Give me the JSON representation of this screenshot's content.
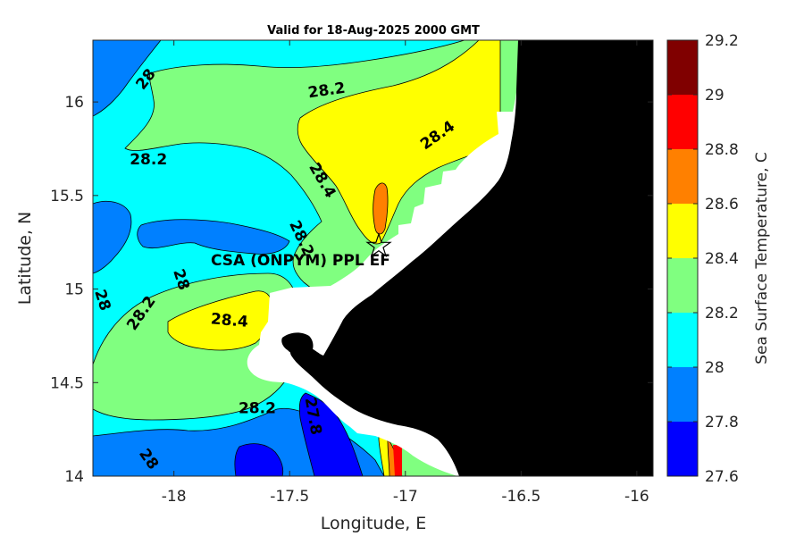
{
  "chart_data": {
    "type": "contour_map",
    "title": "Valid for 18-Aug-2025 2000 GMT",
    "xlabel": "Longitude, E",
    "ylabel": "Latitude, N",
    "xlim": [
      -18.35,
      -15.93
    ],
    "ylim": [
      14.0,
      16.33
    ],
    "xticks": [
      -18,
      -17.5,
      -17,
      -16.5,
      -16
    ],
    "xtick_labels": [
      "-18",
      "-17.5",
      "-17",
      "-16.5",
      "-16"
    ],
    "yticks": [
      14,
      14.5,
      15,
      15.5,
      16
    ],
    "ytick_labels": [
      "14",
      "14.5",
      "15",
      "15.5",
      "16"
    ],
    "colorbar": {
      "label": "Sea Surface Temperature, C",
      "ticks": [
        "27.6",
        "27.8",
        "28",
        "28.2",
        "28.4",
        "28.6",
        "28.8",
        "29",
        "29.2"
      ],
      "levels": [
        {
          "min": 27.6,
          "max": 27.8,
          "color": "#0000ff"
        },
        {
          "min": 27.8,
          "max": 28.0,
          "color": "#0080ff"
        },
        {
          "min": 28.0,
          "max": 28.2,
          "color": "#00ffff"
        },
        {
          "min": 28.2,
          "max": 28.4,
          "color": "#80ff80"
        },
        {
          "min": 28.4,
          "max": 28.6,
          "color": "#ffff00"
        },
        {
          "min": 28.6,
          "max": 28.8,
          "color": "#ff8000"
        },
        {
          "min": 28.8,
          "max": 29.0,
          "color": "#ff0000"
        },
        {
          "min": 29.0,
          "max": 29.2,
          "color": "#800000"
        }
      ]
    },
    "land_color": "#000000",
    "nodata_color": "#ffffff",
    "station": {
      "name": "CSA (ONPYM) PPL EF",
      "lon": -17.09,
      "lat": 15.22,
      "marker": "star"
    },
    "contour_labels": [
      {
        "text": "28",
        "lon": -18.12,
        "lat": 16.12,
        "rotate": -52
      },
      {
        "text": "28.2",
        "lon": -17.34,
        "lat": 16.06,
        "rotate": -8
      },
      {
        "text": "28.4",
        "lon": -16.86,
        "lat": 15.82,
        "rotate": -35
      },
      {
        "text": "28.2",
        "lon": -18.11,
        "lat": 15.69,
        "rotate": 0
      },
      {
        "text": "28.4",
        "lon": -17.36,
        "lat": 15.58,
        "rotate": 60
      },
      {
        "text": "28.2",
        "lon": -17.45,
        "lat": 15.27,
        "rotate": 65
      },
      {
        "text": "28",
        "lon": -17.97,
        "lat": 15.05,
        "rotate": 72
      },
      {
        "text": "28",
        "lon": -18.31,
        "lat": 14.94,
        "rotate": 72
      },
      {
        "text": "28.2",
        "lon": -18.14,
        "lat": 14.87,
        "rotate": -55
      },
      {
        "text": "28.4",
        "lon": -17.76,
        "lat": 14.83,
        "rotate": 5
      },
      {
        "text": "28.2",
        "lon": -17.64,
        "lat": 14.36,
        "rotate": 0
      },
      {
        "text": "27.8",
        "lon": -17.4,
        "lat": 14.32,
        "rotate": 80
      },
      {
        "text": "28",
        "lon": -18.11,
        "lat": 14.09,
        "rotate": 55
      }
    ]
  }
}
